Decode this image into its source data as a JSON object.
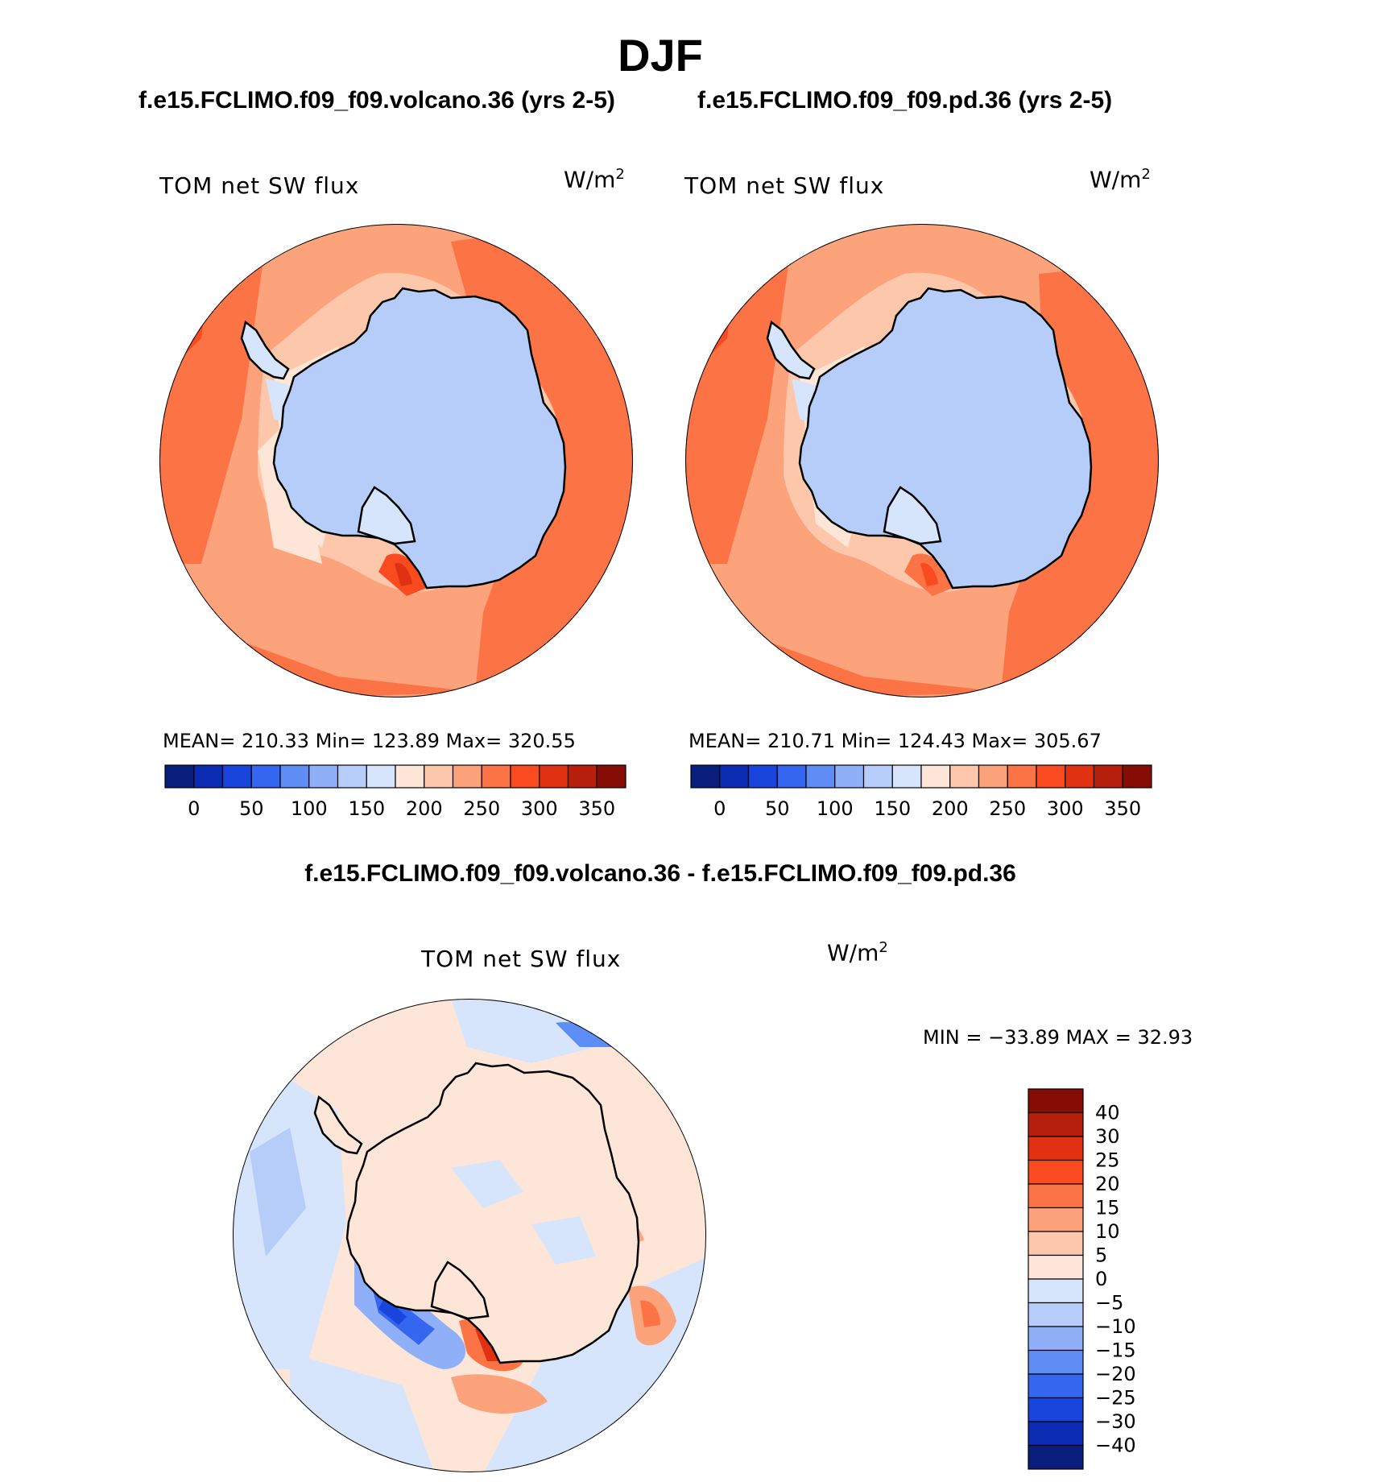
{
  "title": "DJF",
  "colors": {
    "ocean_warm": "#fc7345",
    "ocean_mid": "#fca37c",
    "ocean_light": "#fdc7ac",
    "ice_light": "#fde5d6",
    "continent": "#b7cdf9",
    "diff_bg": "#fde6d7",
    "diff_neg": "#d6e5fc"
  },
  "panels": [
    {
      "title": "f.e15.FCLIMO.f09_f09.volcano.36 (yrs 2-5)",
      "variable": "TOM net SW flux",
      "units": "W/m",
      "units_power": "2",
      "stats": "MEAN= 210.33   Min= 123.89   Max= 320.55",
      "colorbar": {
        "labels": [
          "0",
          "50",
          "100",
          "150",
          "200",
          "250",
          "300",
          "350"
        ],
        "colors": [
          "#081d7c",
          "#0c2bb3",
          "#1a45dc",
          "#3466f0",
          "#5e8df6",
          "#8fb0f9",
          "#b7cdf9",
          "#d6e5fc",
          "#fde6d7",
          "#fdc7ac",
          "#fca37c",
          "#fc7345",
          "#f94a20",
          "#e03113",
          "#b7200c",
          "#860d05"
        ]
      }
    },
    {
      "title": "f.e15.FCLIMO.f09_f09.pd.36 (yrs 2-5)",
      "variable": "TOM net SW flux",
      "units": "W/m",
      "units_power": "2",
      "stats": "MEAN= 210.71   Min= 124.43   Max= 305.67",
      "colorbar": {
        "labels": [
          "0",
          "50",
          "100",
          "150",
          "200",
          "250",
          "300",
          "350"
        ],
        "colors": [
          "#081d7c",
          "#0c2bb3",
          "#1a45dc",
          "#3466f0",
          "#5e8df6",
          "#8fb0f9",
          "#b7cdf9",
          "#d6e5fc",
          "#fde6d7",
          "#fdc7ac",
          "#fca37c",
          "#fc7345",
          "#f94a20",
          "#e03113",
          "#b7200c",
          "#860d05"
        ]
      }
    }
  ],
  "difference": {
    "title": "f.e15.FCLIMO.f09_f09.volcano.36 - f.e15.FCLIMO.f09_f09.pd.36",
    "variable": "TOM net SW flux",
    "units": "W/m",
    "units_power": "2",
    "stats": "MIN = −33.89 MAX =   32.93",
    "colorbar": {
      "labels": [
        "40",
        "30",
        "25",
        "20",
        "15",
        "10",
        "5",
        "0",
        "−5",
        "−10",
        "−15",
        "−20",
        "−25",
        "−30",
        "−40"
      ],
      "colors": [
        "#860d05",
        "#b7200c",
        "#e03113",
        "#f94a20",
        "#fc7345",
        "#fca37c",
        "#fdc7ac",
        "#fde6d7",
        "#d6e5fc",
        "#b7cdf9",
        "#8fb0f9",
        "#5e8df6",
        "#3466f0",
        "#1a45dc",
        "#0c2bb3",
        "#081d7c"
      ]
    }
  }
}
